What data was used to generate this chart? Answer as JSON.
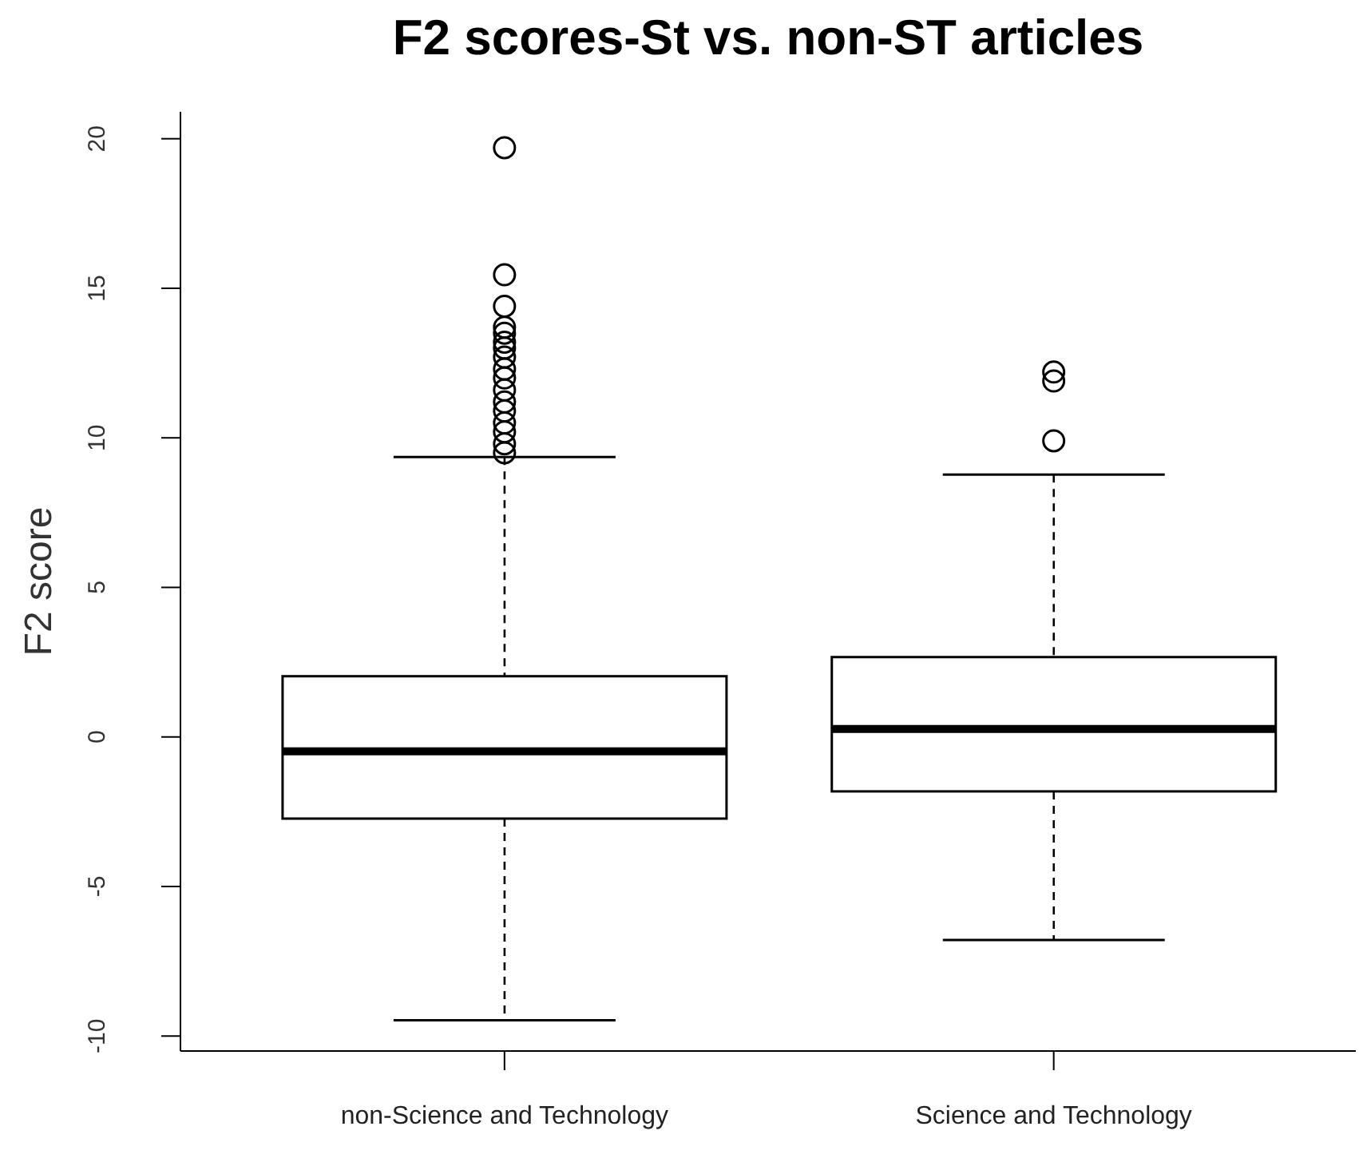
{
  "chart_data": {
    "type": "box",
    "title": "F2 scores-St vs. non-ST articles",
    "ylabel": "F2 score",
    "categories": [
      "non-Science and Technology",
      "Science and Technology"
    ],
    "boxes": [
      {
        "low": -9.47,
        "q1": -2.73,
        "median": -0.48,
        "q3": 2.03,
        "high": 9.36,
        "outliers": [
          19.7,
          15.45,
          14.4,
          13.7,
          13.5,
          13.2,
          13.0,
          12.7,
          12.3,
          12.0,
          11.6,
          11.2,
          10.9,
          10.5,
          10.2,
          9.8,
          9.5
        ]
      },
      {
        "low": -6.79,
        "q1": -1.82,
        "median": 0.27,
        "q3": 2.67,
        "high": 8.77,
        "outliers": [
          12.2,
          11.9,
          9.9
        ]
      }
    ],
    "ylim": [
      -10.5,
      20.9
    ],
    "yticks": [
      -10,
      -5,
      0,
      5,
      10,
      15,
      20
    ]
  }
}
